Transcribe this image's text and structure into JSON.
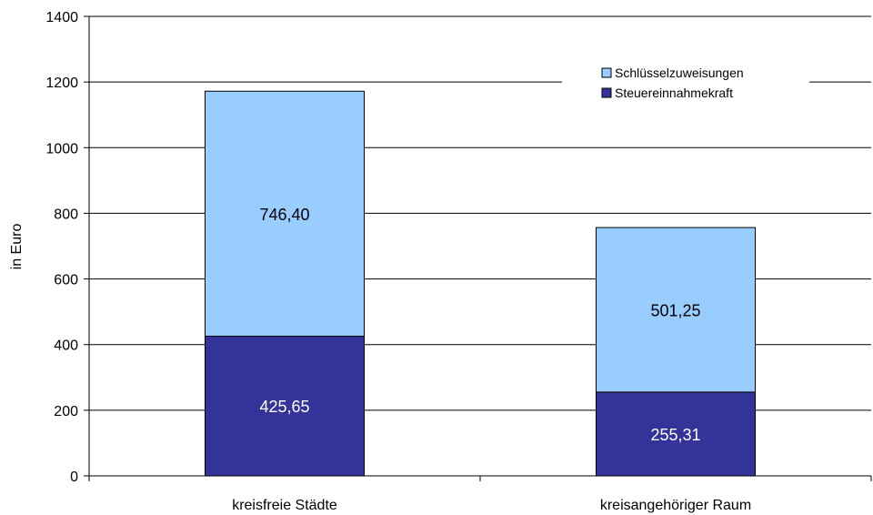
{
  "chart_data": {
    "type": "bar",
    "stacked": true,
    "categories": [
      "kreisfreie Städte",
      "kreisangehöriger Raum"
    ],
    "series": [
      {
        "name": "Steuereinnahmekraft",
        "values": [
          425.65,
          255.31
        ],
        "labels": [
          "425,65",
          "255,31"
        ],
        "color": "#333399",
        "label_color": "#ffffff"
      },
      {
        "name": "Schlüsselzuweisungen",
        "values": [
          746.4,
          501.25
        ],
        "labels": [
          "746,40",
          "501,25"
        ],
        "color": "#99ccff",
        "label_color": "#000000"
      }
    ],
    "ylabel": "in Euro",
    "ylim": [
      0,
      1400
    ],
    "yticks": [
      0,
      200,
      400,
      600,
      800,
      1000,
      1200,
      1400
    ],
    "grid": true,
    "legend_position": "top-right",
    "legend_order": [
      "Schlüsselzuweisungen",
      "Steuereinnahmekraft"
    ]
  }
}
